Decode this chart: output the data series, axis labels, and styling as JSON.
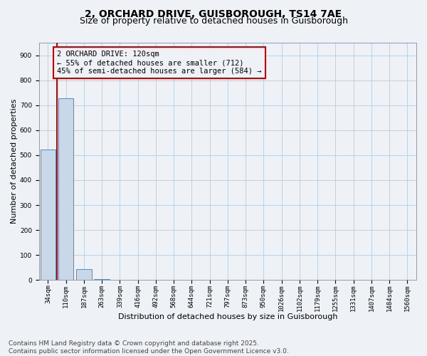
{
  "title_line1": "2, ORCHARD DRIVE, GUISBOROUGH, TS14 7AE",
  "title_line2": "Size of property relative to detached houses in Guisborough",
  "xlabel": "Distribution of detached houses by size in Guisborough",
  "ylabel": "Number of detached properties",
  "categories": [
    "34sqm",
    "110sqm",
    "187sqm",
    "263sqm",
    "339sqm",
    "416sqm",
    "492sqm",
    "568sqm",
    "644sqm",
    "721sqm",
    "797sqm",
    "873sqm",
    "950sqm",
    "1026sqm",
    "1102sqm",
    "1179sqm",
    "1255sqm",
    "1331sqm",
    "1407sqm",
    "1484sqm",
    "1560sqm"
  ],
  "values": [
    522,
    727,
    44,
    5,
    1,
    0,
    0,
    0,
    0,
    0,
    0,
    0,
    0,
    0,
    0,
    0,
    0,
    0,
    0,
    0,
    0
  ],
  "bar_color": "#c8d8e8",
  "bar_edge_color": "#5a8ab0",
  "property_line_color": "#cc0000",
  "annotation_text": "2 ORCHARD DRIVE: 120sqm\n← 55% of detached houses are smaller (712)\n45% of semi-detached houses are larger (584) →",
  "annotation_box_color": "#cc0000",
  "ylim": [
    0,
    950
  ],
  "yticks": [
    0,
    100,
    200,
    300,
    400,
    500,
    600,
    700,
    800,
    900
  ],
  "grid_color": "#b8ccdc",
  "background_color": "#eef2f7",
  "footer_text": "Contains HM Land Registry data © Crown copyright and database right 2025.\nContains public sector information licensed under the Open Government Licence v3.0.",
  "title_fontsize": 10,
  "subtitle_fontsize": 9,
  "axis_label_fontsize": 8,
  "tick_fontsize": 6.5,
  "annotation_fontsize": 7.5,
  "footer_fontsize": 6.5
}
